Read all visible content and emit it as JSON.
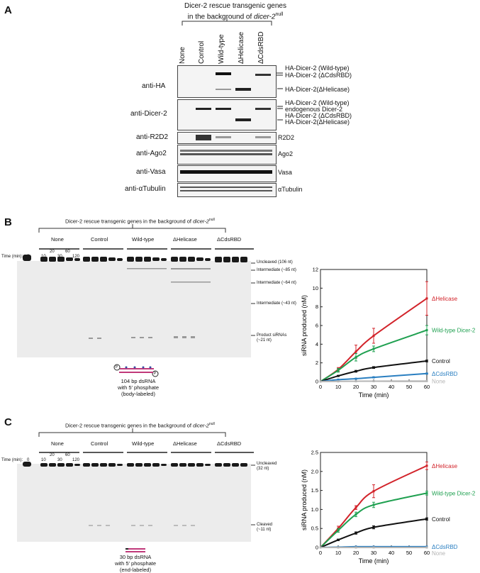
{
  "panel_a": {
    "letter": "A",
    "header_line1": "Dicer-2 rescue transgenic genes",
    "header_line2": "in the background of",
    "header_gene": "dicer-2",
    "header_sup": "null",
    "lanes": [
      "None",
      "Control",
      "Wild-type",
      "ΔHelicase",
      "ΔCdsRBD"
    ],
    "rows": [
      {
        "left": "anti-HA",
        "right": [
          "HA-Dicer-2 (Wild-type)",
          "HA-Dicer-2 (ΔCdsRBD)",
          "HA-Dicer-2(ΔHelicase)"
        ]
      },
      {
        "left": "anti-Dicer-2",
        "right": [
          "HA-Dicer-2 (Wild-type)",
          "endogenous Dicer-2",
          "HA-Dicer-2 (ΔCdsRBD)",
          "HA-Dicer-2(ΔHelicase)"
        ]
      },
      {
        "left": "anti-R2D2",
        "right": [
          "R2D2"
        ]
      },
      {
        "left": "anti-Ago2",
        "right": [
          "Ago2"
        ]
      },
      {
        "left": "anti-Vasa",
        "right": [
          "Vasa"
        ]
      },
      {
        "left": "anti-αTubulin",
        "right": [
          "αTubulin"
        ]
      }
    ]
  },
  "panel_b": {
    "letter": "B",
    "header": "Dicer-2 rescue transgenic genes in the background of",
    "header_gene": "dicer-2",
    "header_sup": "null",
    "groups": [
      "None",
      "Control",
      "Wild-type",
      "ΔHelicase",
      "ΔCdsRBD"
    ],
    "time_label": "Time (min):",
    "time_zero": "0",
    "time_top": [
      "20",
      "60"
    ],
    "time_bottom": [
      "10",
      "30",
      "120"
    ],
    "bands": [
      "Uncleaved (106 nt)",
      "Intermediate (~85 nt)",
      "Intermediate (~64 nt)",
      "Intermediate (~43 nt)",
      "Product siRNAs",
      "(~21 nt)"
    ],
    "substrate_caption": [
      "104 bp dsRNA",
      "with 5′ phosphate",
      "(body-labeled)"
    ],
    "substrate_p": "P"
  },
  "panel_c": {
    "letter": "C",
    "header": "Dicer-2 rescue transgenic genes in the background of",
    "header_gene": "dicer-2",
    "header_sup": "null",
    "groups": [
      "None",
      "Control",
      "Wild-type",
      "ΔHelicase",
      "ΔCdsRBD"
    ],
    "time_label": "Time (min):",
    "time_zero": "0",
    "time_top": [
      "20",
      "60"
    ],
    "time_bottom": [
      "10",
      "30",
      "120"
    ],
    "bands": [
      "Uncleaved",
      "(32 nt)",
      "Cleaved",
      "(~11 nt)"
    ],
    "substrate_caption": [
      "30 bp dsRNA",
      "with 5′ phosphate",
      "(end-labeled)"
    ]
  },
  "chart_data": [
    {
      "type": "line",
      "xlabel": "Time (min)",
      "ylabel": "siRNA produced (nM)",
      "xlim": [
        0,
        60
      ],
      "ylim": [
        0,
        12
      ],
      "xticks": [
        0,
        10,
        20,
        30,
        40,
        50,
        60
      ],
      "yticks": [
        0,
        2,
        4,
        6,
        8,
        10,
        12
      ],
      "x": [
        0,
        10,
        20,
        30,
        60
      ],
      "series": [
        {
          "name": "ΔHelicase",
          "color": "#d2232a",
          "values": [
            0,
            1.3,
            3.2,
            4.9,
            8.9
          ],
          "err": [
            0,
            0.2,
            0.7,
            0.8,
            1.8
          ]
        },
        {
          "name": "Wild-type Dicer-2",
          "color": "#1fa050",
          "values": [
            0,
            1.2,
            2.6,
            3.5,
            5.5
          ],
          "err": [
            0,
            0.2,
            0.4,
            0.3,
            0.5
          ]
        },
        {
          "name": "Control",
          "color": "#111111",
          "values": [
            0,
            0.6,
            1.1,
            1.5,
            2.2
          ],
          "err": [
            0,
            0.05,
            0.1,
            0.1,
            0.1
          ]
        },
        {
          "name": "ΔCdsRBD",
          "color": "#2a7fc1",
          "values": [
            0,
            0.2,
            0.3,
            0.45,
            0.85
          ],
          "err": [
            0,
            0.03,
            0.03,
            0.05,
            0.05
          ]
        },
        {
          "name": "None",
          "color": "#b5b5b5",
          "values": [
            0,
            0.02,
            0.03,
            0.04,
            0.05
          ],
          "err": [
            0,
            0,
            0,
            0,
            0
          ]
        }
      ]
    },
    {
      "type": "line",
      "xlabel": "Time (min)",
      "ylabel": "siRNA produced (nM)",
      "xlim": [
        0,
        60
      ],
      "ylim": [
        0,
        2.5
      ],
      "xticks": [
        0,
        10,
        20,
        30,
        40,
        50,
        60
      ],
      "yticks": [
        0,
        0.5,
        1.0,
        1.5,
        2.0,
        2.5
      ],
      "ytick_labels": [
        "0",
        "0.5",
        "1.0",
        "1.5",
        "2.0",
        "2.5"
      ],
      "x": [
        0,
        10,
        20,
        30,
        60
      ],
      "series": [
        {
          "name": "ΔHelicase",
          "color": "#d2232a",
          "values": [
            0,
            0.5,
            1.05,
            1.48,
            2.15
          ],
          "err": [
            0,
            0.06,
            0.05,
            0.17,
            0.1
          ]
        },
        {
          "name": "Wild-type Dicer-2",
          "color": "#1fa050",
          "values": [
            0,
            0.45,
            0.87,
            1.12,
            1.43
          ],
          "err": [
            0,
            0.05,
            0.06,
            0.07,
            0.05
          ]
        },
        {
          "name": "Control",
          "color": "#111111",
          "values": [
            0,
            0.2,
            0.38,
            0.53,
            0.75
          ],
          "err": [
            0,
            0.02,
            0.03,
            0.04,
            0.03
          ]
        },
        {
          "name": "ΔCdsRBD",
          "color": "#2a7fc1",
          "values": [
            0,
            0.01,
            0.02,
            0.02,
            0.02
          ],
          "err": [
            0,
            0,
            0,
            0,
            0
          ]
        },
        {
          "name": "None",
          "color": "#b5b5b5",
          "values": [
            0,
            0,
            0,
            0,
            0
          ],
          "err": [
            0,
            0,
            0,
            0,
            0
          ]
        }
      ]
    }
  ]
}
